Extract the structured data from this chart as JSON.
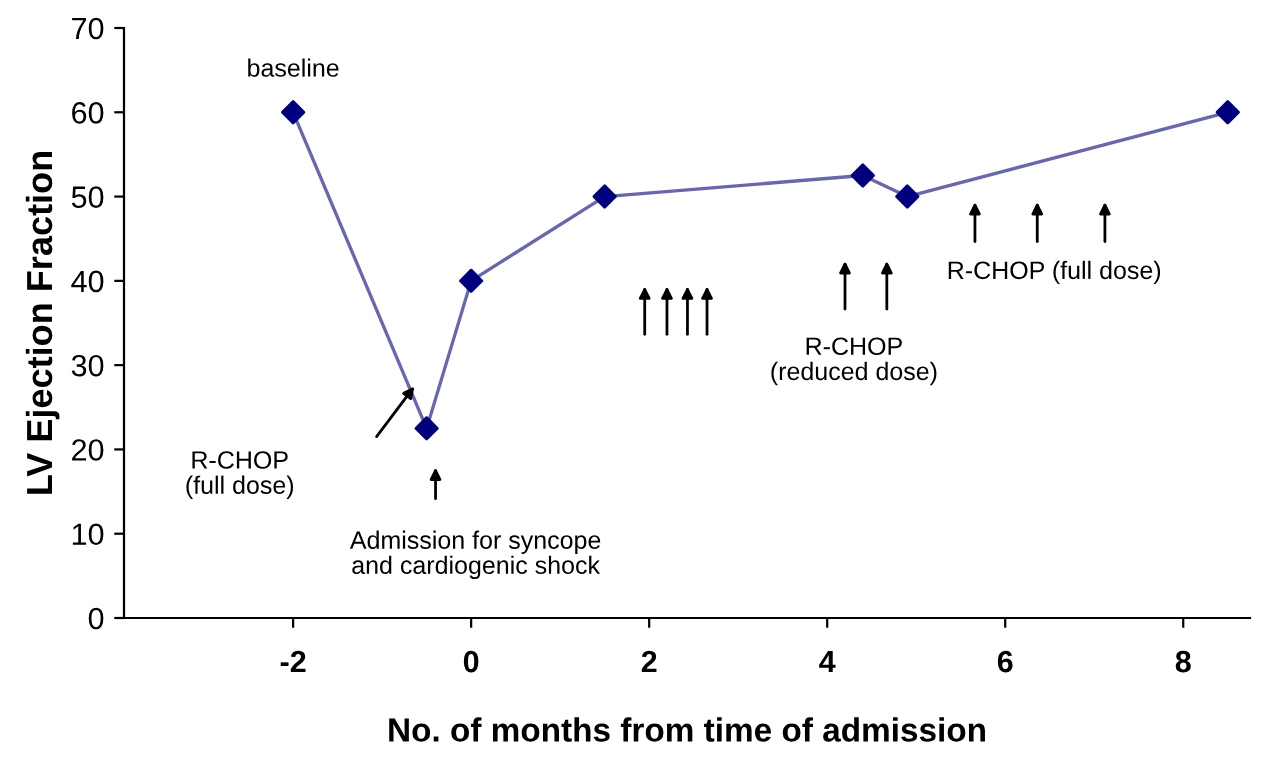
{
  "chart_data": {
    "type": "line",
    "xlabel": "No. of months from time of admission",
    "ylabel": "LV Ejection Fraction",
    "series": [
      {
        "color": "#00007f",
        "x": [
          -2,
          -0.5,
          0,
          1.5,
          4.4,
          4.9,
          8.5
        ],
        "values": [
          60,
          22.5,
          40,
          50,
          52.5,
          50,
          60
        ]
      }
    ],
    "xlim": [
      -3.9,
      8.75
    ],
    "xticks": [
      -2,
      0,
      2,
      4,
      6,
      8
    ],
    "ylim": [
      0,
      70
    ],
    "yticks": [
      0,
      10,
      20,
      30,
      40,
      50,
      60,
      70
    ],
    "marker": "diamond",
    "line_style": "solid",
    "grid": false,
    "annotations": [
      "baseline",
      "R-CHOP\n(full dose)",
      "Admission for syncope\nand cardiogenic shock",
      "R-CHOP\n(reduced dose)",
      "R-CHOP (full dose)"
    ]
  }
}
